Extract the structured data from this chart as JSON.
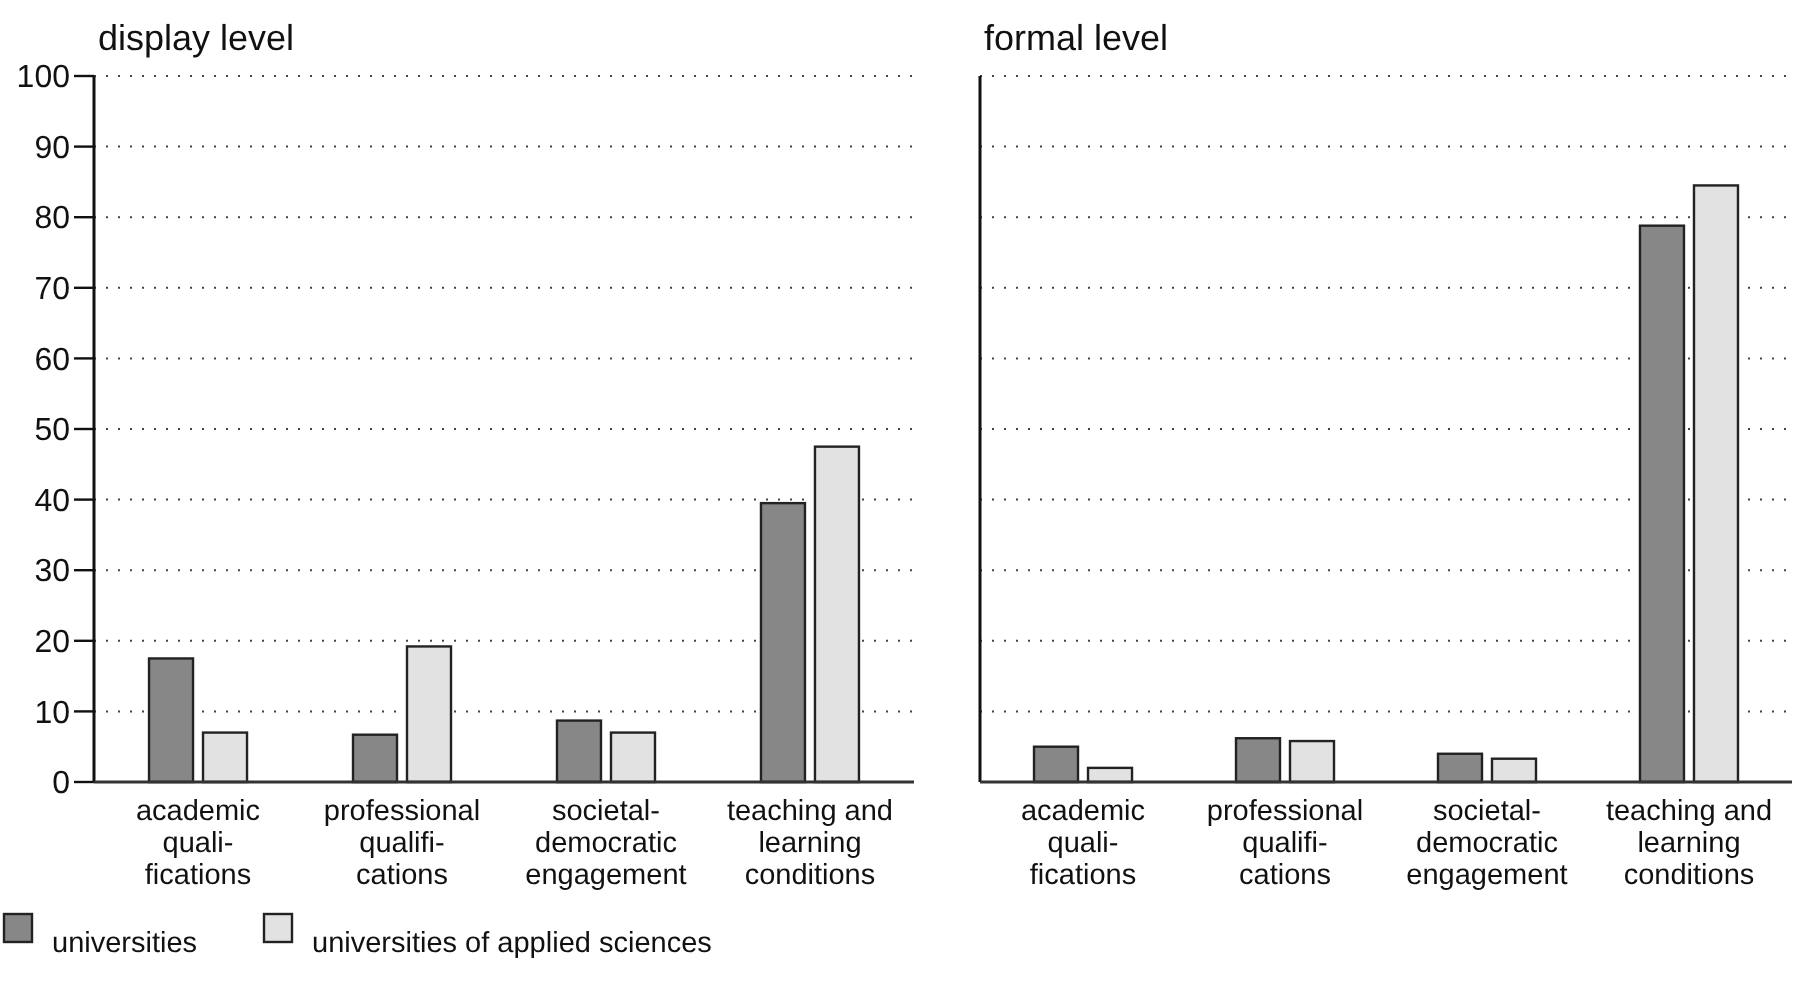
{
  "chart_data": [
    {
      "type": "bar",
      "title": "display level",
      "categories": [
        "academic\nquali-\nfications",
        "professional\nqualifi-\ncations",
        "societal-\ndemocratic\nengagement",
        "teaching and\nlearning\nconditions"
      ],
      "series": [
        {
          "name": "universities",
          "color": "#878787",
          "values": [
            17.5,
            6.7,
            8.7,
            39.5
          ]
        },
        {
          "name": "universities of applied sciences",
          "color": "#e1e2e1",
          "values": [
            7,
            19.2,
            7,
            47.5
          ]
        }
      ],
      "ylim": [
        0,
        100
      ],
      "yticks": [
        0,
        10,
        20,
        30,
        40,
        50,
        60,
        70,
        80,
        90,
        100
      ],
      "grid": "y",
      "legend": "bottom"
    },
    {
      "type": "bar",
      "title": "formal level",
      "categories": [
        "academic\nquali-\nfications",
        "professional\nqualifi-\ncations",
        "societal-\ndemocratic\nengagement",
        "teaching and\nlearning\nconditions"
      ],
      "series": [
        {
          "color": "#878787",
          "values": [
            5,
            6.2,
            4,
            78.8
          ]
        },
        {
          "color": "#e1e2e1",
          "values": [
            2,
            5.8,
            3.3,
            84.5
          ]
        }
      ],
      "ylim": [
        0,
        100
      ],
      "yticks": [
        0,
        10,
        20,
        30,
        40,
        50,
        60,
        70,
        80,
        90,
        100
      ],
      "grid": "y",
      "tick_labels": "x"
    }
  ]
}
